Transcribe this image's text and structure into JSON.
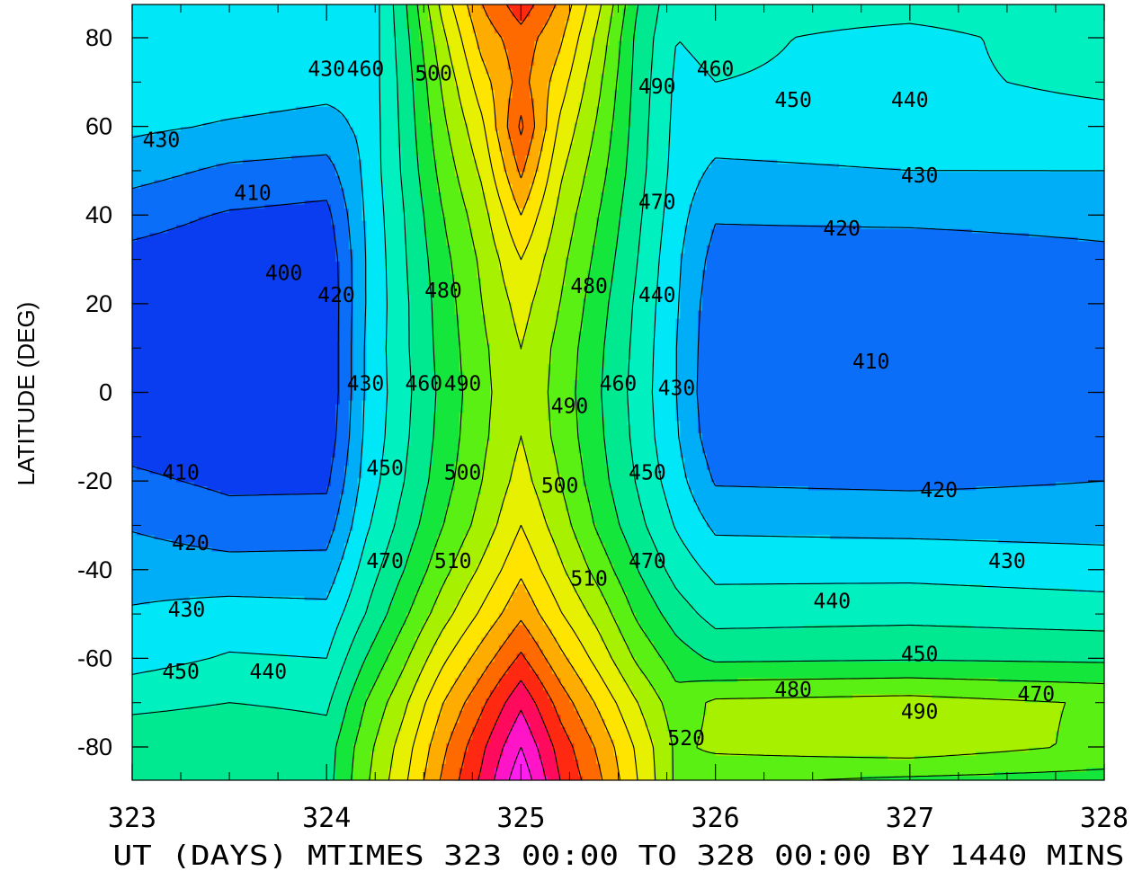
{
  "chart_data": {
    "type": "heatmap",
    "subtype": "filled contour",
    "xlabel": "UT (DAYS) MTIMES 323 00:00 TO 328 00:00 BY 1440 MINS",
    "ylabel": "LATITUDE (DEG)",
    "xlim": [
      323,
      328
    ],
    "ylim": [
      -87.5,
      87.5
    ],
    "x_ticks": [
      323,
      324,
      325,
      326,
      327,
      328
    ],
    "x_tick_labels": [
      "323",
      "324",
      "325",
      "326",
      "327",
      "328"
    ],
    "y_ticks": [
      80,
      60,
      40,
      20,
      0,
      -20,
      -40,
      -60,
      -80
    ],
    "y_tick_labels": [
      "80",
      "60",
      "40",
      "20",
      "0",
      "-20",
      "-40",
      "-60",
      "-80"
    ],
    "grid": false,
    "contour_levels": [
      400,
      410,
      420,
      430,
      440,
      450,
      460,
      470,
      480,
      490,
      500,
      510,
      520,
      530,
      540,
      550,
      560
    ],
    "level_colors": [
      "#0a14e6",
      "#0a3cf0",
      "#0a6ef8",
      "#00aef7",
      "#00e8f8",
      "#00f0c0",
      "#00e890",
      "#14e63c",
      "#5af014",
      "#a6f000",
      "#e6f000",
      "#ffe400",
      "#ffac00",
      "#ff6a00",
      "#ff2810",
      "#ff0a5c",
      "#ff14c8",
      "#ff1ef0"
    ],
    "lat_rows": [
      -87.5,
      -80,
      -70,
      -60,
      -50,
      -40,
      -30,
      -20,
      -10,
      0,
      10,
      20,
      30,
      40,
      50,
      60,
      70,
      80,
      87.5
    ],
    "series": [
      {
        "x": 323.0,
        "values": [
          455,
          458,
          447,
          436,
          431,
          426,
          419,
          412,
          406,
          404,
          404,
          405,
          407,
          414,
          424,
          432,
          436,
          438,
          438
        ]
      },
      {
        "x": 323.5,
        "values": [
          454,
          459,
          450,
          441,
          434,
          424,
          414,
          408,
          403,
          401,
          401,
          402,
          404,
          409,
          418,
          429,
          435,
          437,
          436
        ]
      },
      {
        "x": 324.0,
        "values": [
          456,
          455,
          448,
          440,
          433,
          424,
          415,
          408,
          403,
          401,
          401,
          401,
          402,
          407,
          416,
          427,
          433,
          436,
          434
        ]
      },
      {
        "x": 324.2,
        "values": [
          478,
          476,
          470,
          460,
          450,
          444,
          438,
          434,
          432,
          431,
          431,
          430,
          430,
          431,
          432,
          432,
          432,
          431,
          430
        ]
      },
      {
        "x": 324.4,
        "values": [
          498,
          495,
          488,
          478,
          468,
          460,
          454,
          450,
          448,
          447,
          448,
          448,
          449,
          450,
          452,
          453,
          454,
          456,
          458
        ]
      },
      {
        "x": 324.6,
        "values": [
          522,
          518,
          510,
          498,
          486,
          477,
          470,
          466,
          464,
          463,
          464,
          465,
          467,
          470,
          474,
          478,
          482,
          488,
          494
        ]
      },
      {
        "x": 324.8,
        "values": [
          542,
          538,
          528,
          515,
          502,
          492,
          484,
          480,
          478,
          477,
          478,
          480,
          482,
          486,
          492,
          498,
          506,
          514,
          520
        ]
      },
      {
        "x": 325.0,
        "values": [
          568,
          560,
          548,
          532,
          518,
          508,
          500,
          494,
          490,
          489,
          490,
          494,
          500,
          510,
          522,
          532,
          524,
          526,
          536
        ]
      },
      {
        "x": 325.2,
        "values": [
          540,
          536,
          526,
          513,
          501,
          492,
          485,
          480,
          477,
          476,
          477,
          480,
          483,
          487,
          492,
          498,
          505,
          512,
          518
        ]
      },
      {
        "x": 325.4,
        "values": [
          522,
          518,
          508,
          496,
          486,
          476,
          468,
          464,
          462,
          461,
          462,
          464,
          467,
          470,
          474,
          478,
          482,
          487,
          492
        ]
      },
      {
        "x": 325.6,
        "values": [
          500,
          498,
          490,
          478,
          468,
          460,
          453,
          449,
          447,
          446,
          447,
          448,
          450,
          452,
          454,
          455,
          456,
          457,
          460
        ]
      },
      {
        "x": 325.8,
        "values": [
          478,
          478,
          474,
          465,
          455,
          446,
          439,
          434,
          431,
          430,
          430,
          431,
          432,
          434,
          436,
          437,
          438,
          440,
          442
        ]
      },
      {
        "x": 326.0,
        "values": [
          472,
          482,
          482,
          458,
          446,
          437,
          428,
          419,
          413,
          411,
          412,
          413,
          416,
          421,
          428,
          435,
          440,
          442,
          444
        ]
      },
      {
        "x": 327.0,
        "values": [
          468,
          486,
          484,
          459,
          447,
          437,
          427,
          418,
          412,
          410,
          411,
          412,
          415,
          422,
          430,
          436,
          438,
          437,
          444
        ]
      },
      {
        "x": 328.0,
        "values": [
          466,
          478,
          479,
          458,
          445,
          435,
          426,
          420,
          415,
          414,
          414,
          415,
          418,
          423,
          430,
          437,
          442,
          445,
          446
        ]
      }
    ],
    "contour_labels": [
      {
        "text": "430",
        "x": 323.15,
        "y": 57
      },
      {
        "text": "410",
        "x": 323.62,
        "y": 45
      },
      {
        "text": "400",
        "x": 323.78,
        "y": 27
      },
      {
        "text": "410",
        "x": 323.25,
        "y": -18
      },
      {
        "text": "420",
        "x": 323.3,
        "y": -34
      },
      {
        "text": "430",
        "x": 323.28,
        "y": -49
      },
      {
        "text": "450",
        "x": 323.25,
        "y": -63
      },
      {
        "text": "440",
        "x": 323.7,
        "y": -63
      },
      {
        "text": "430",
        "x": 324.0,
        "y": 73
      },
      {
        "text": "460",
        "x": 324.2,
        "y": 73
      },
      {
        "text": "500",
        "x": 324.55,
        "y": 72
      },
      {
        "text": "420",
        "x": 324.05,
        "y": 22
      },
      {
        "text": "430",
        "x": 324.2,
        "y": 2
      },
      {
        "text": "450",
        "x": 324.3,
        "y": -17
      },
      {
        "text": "470",
        "x": 324.3,
        "y": -38
      },
      {
        "text": "480",
        "x": 324.6,
        "y": 23
      },
      {
        "text": "460",
        "x": 324.5,
        "y": 2
      },
      {
        "text": "490",
        "x": 324.7,
        "y": 2
      },
      {
        "text": "500",
        "x": 324.7,
        "y": -18
      },
      {
        "text": "510",
        "x": 324.65,
        "y": -38
      },
      {
        "text": "490",
        "x": 325.7,
        "y": 69
      },
      {
        "text": "460",
        "x": 326.0,
        "y": 73
      },
      {
        "text": "470",
        "x": 325.7,
        "y": 43
      },
      {
        "text": "480",
        "x": 325.35,
        "y": 24
      },
      {
        "text": "440",
        "x": 325.7,
        "y": 22
      },
      {
        "text": "460",
        "x": 325.5,
        "y": 2
      },
      {
        "text": "490",
        "x": 325.25,
        "y": -3
      },
      {
        "text": "430",
        "x": 325.8,
        "y": 1
      },
      {
        "text": "500",
        "x": 325.2,
        "y": -21
      },
      {
        "text": "450",
        "x": 325.65,
        "y": -18
      },
      {
        "text": "510",
        "x": 325.35,
        "y": -42
      },
      {
        "text": "470",
        "x": 325.65,
        "y": -38
      },
      {
        "text": "520",
        "x": 325.85,
        "y": -78
      },
      {
        "text": "450",
        "x": 326.4,
        "y": 66
      },
      {
        "text": "440",
        "x": 327.0,
        "y": 66
      },
      {
        "text": "430",
        "x": 327.05,
        "y": 49
      },
      {
        "text": "420",
        "x": 326.65,
        "y": 37
      },
      {
        "text": "410",
        "x": 326.8,
        "y": 7
      },
      {
        "text": "420",
        "x": 327.15,
        "y": -22
      },
      {
        "text": "430",
        "x": 327.5,
        "y": -38
      },
      {
        "text": "440",
        "x": 326.6,
        "y": -47
      },
      {
        "text": "450",
        "x": 327.05,
        "y": -59
      },
      {
        "text": "480",
        "x": 326.4,
        "y": -67
      },
      {
        "text": "490",
        "x": 327.05,
        "y": -72
      },
      {
        "text": "470",
        "x": 327.65,
        "y": -68
      }
    ]
  }
}
